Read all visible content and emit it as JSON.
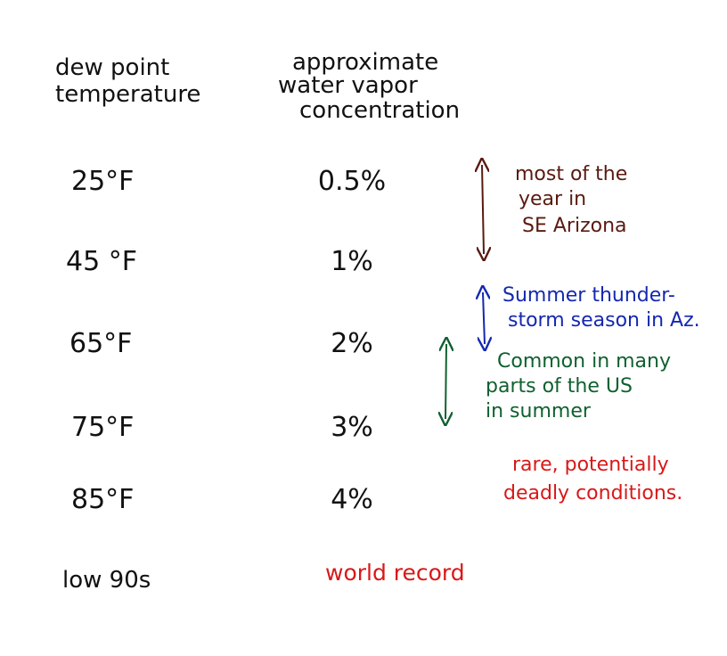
{
  "header": {
    "col1": [
      "dew point",
      "temperature"
    ],
    "col2": [
      "approximate",
      "water vapor",
      "concentration"
    ]
  },
  "table": {
    "rows": [
      [
        "25°F",
        "0.5%"
      ],
      [
        "45 °F",
        "1%"
      ],
      [
        "65°F",
        "2%"
      ],
      [
        "75°F",
        "3%"
      ],
      [
        "85°F",
        "4%"
      ],
      [
        "low 90s",
        "world record"
      ]
    ]
  },
  "annotations": [
    {
      "lines": [
        "most of the",
        "year in",
        "SE Arizona"
      ]
    },
    {
      "lines": [
        "Summer thunder-",
        "storm season in Az."
      ]
    },
    {
      "lines": [
        "Common in many",
        "parts of the US",
        "in summer"
      ]
    },
    {
      "lines": [
        "rare, potentially",
        "deadly conditions."
      ]
    }
  ]
}
